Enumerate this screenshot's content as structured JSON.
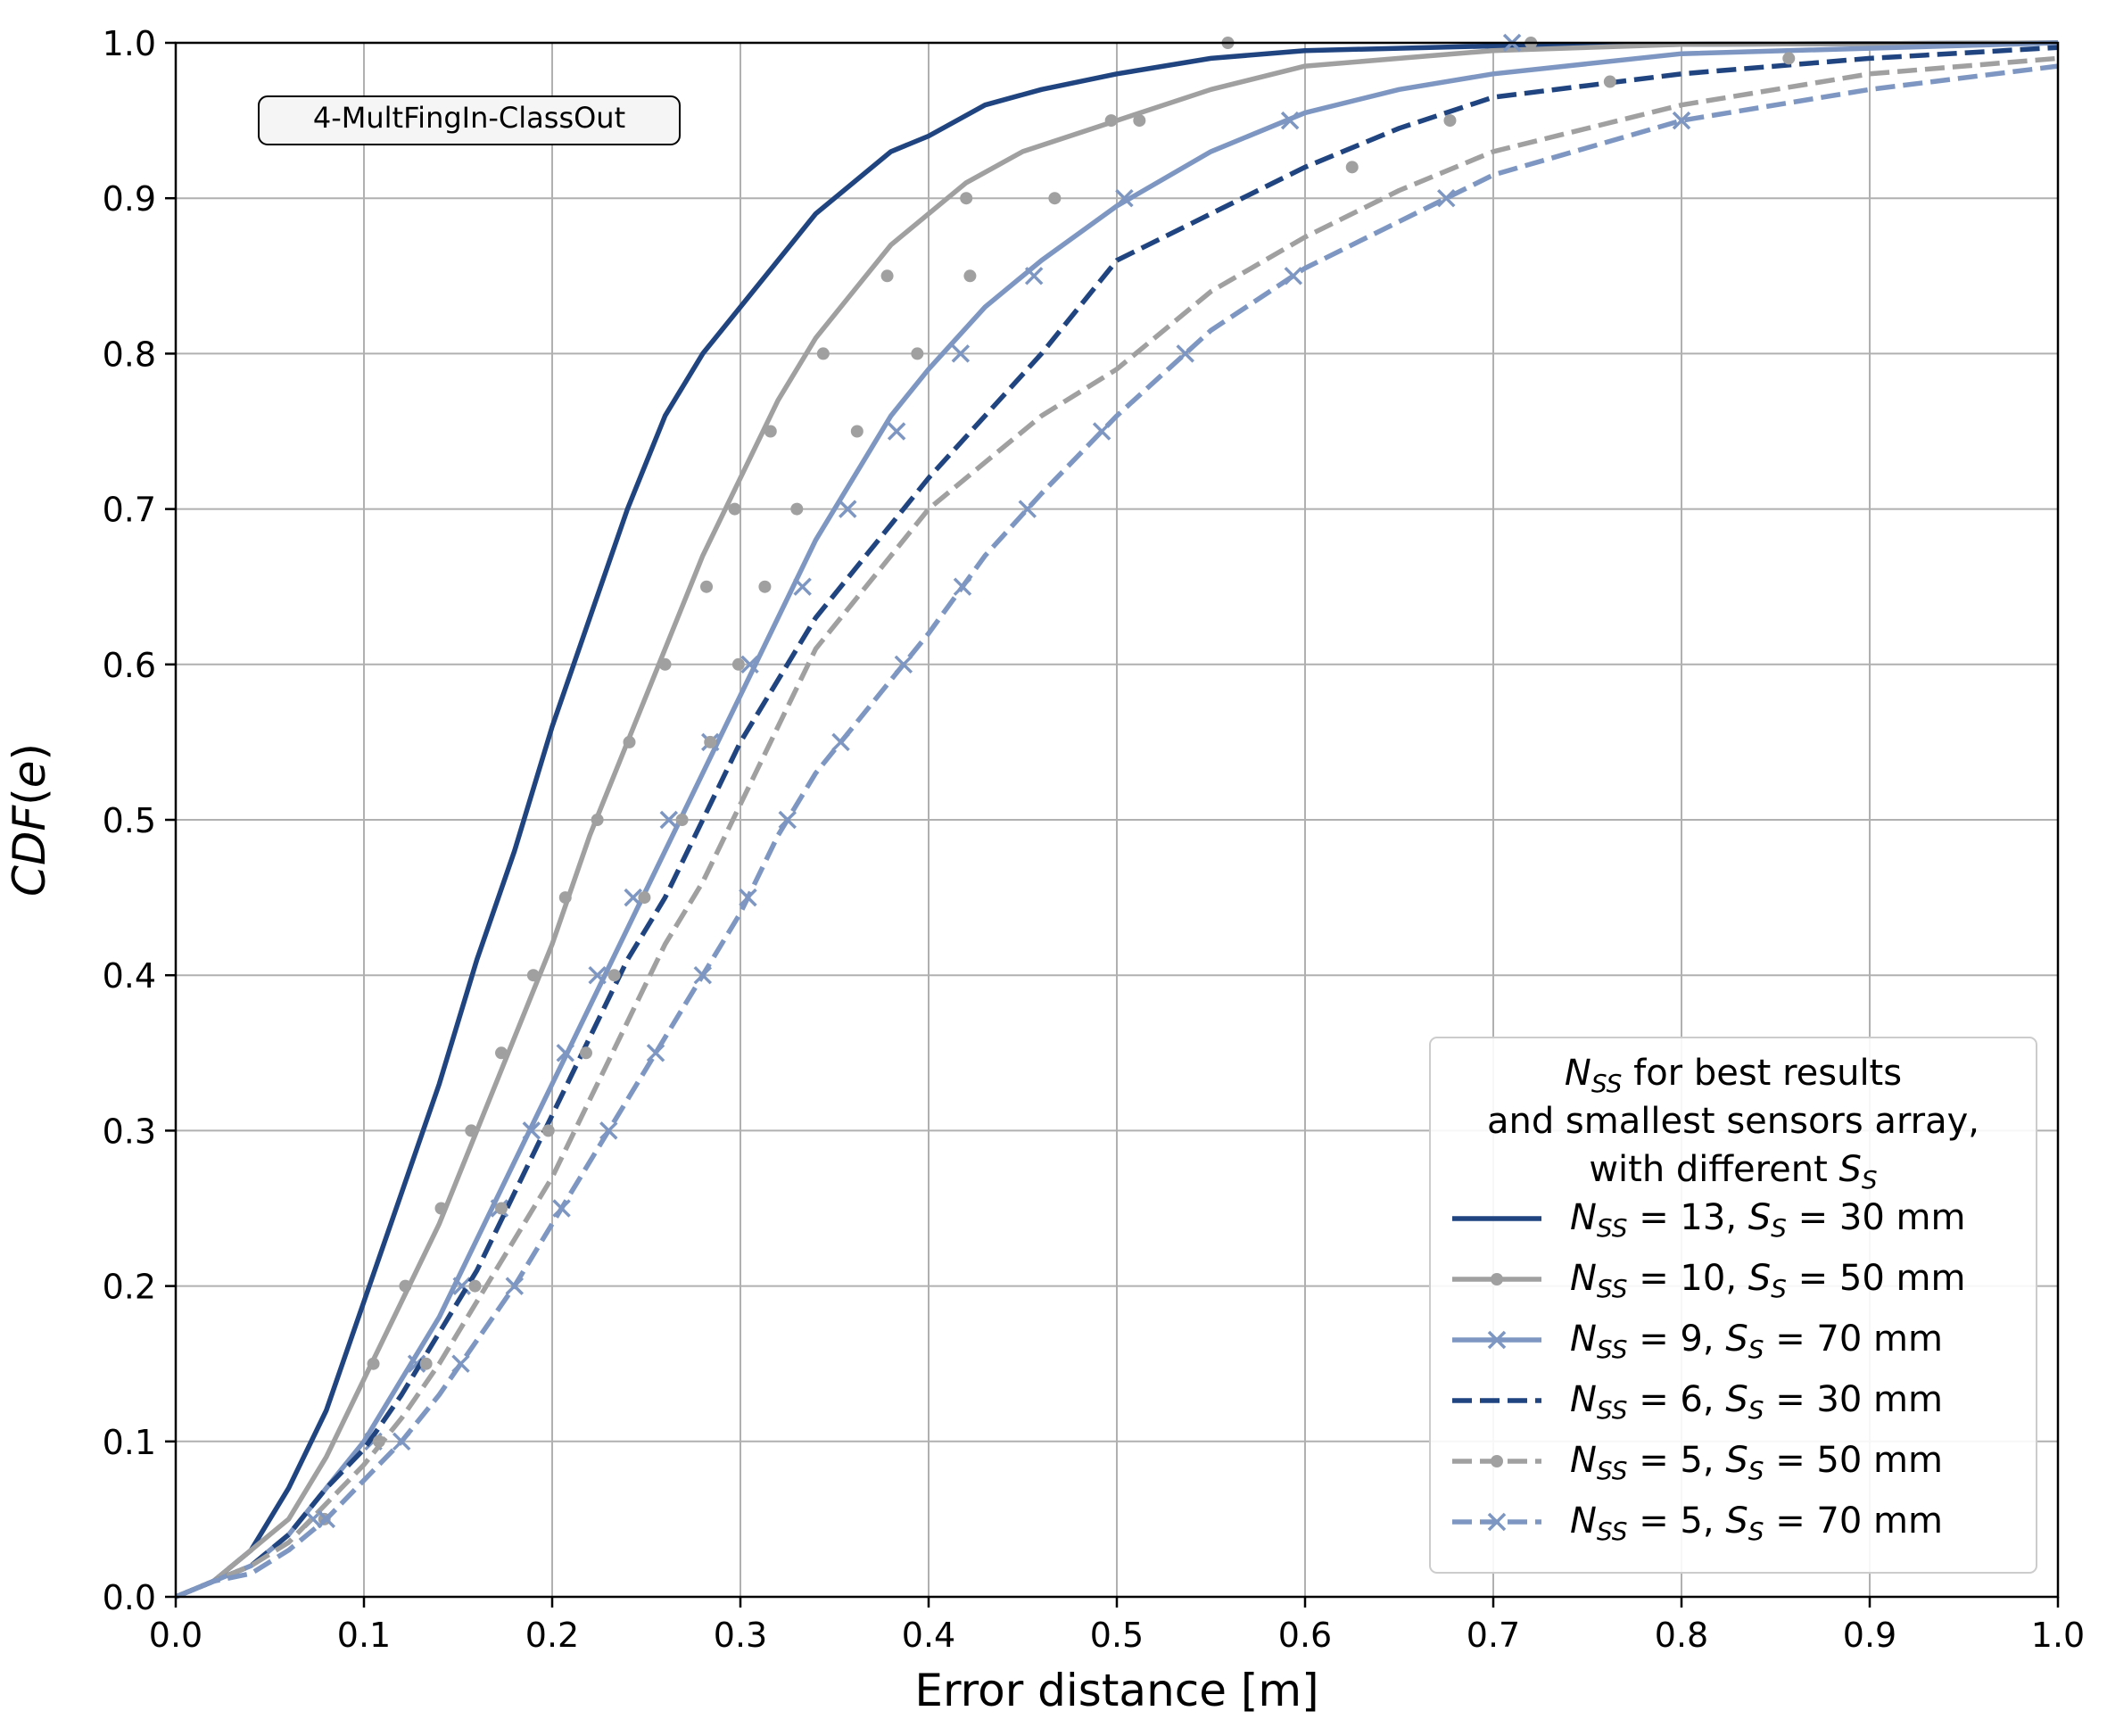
{
  "chart_data": {
    "type": "line",
    "title": "",
    "xlabel": "Error distance [m]",
    "ylabel": "CDF(e)",
    "xlim": [
      0.0,
      1.0
    ],
    "ylim": [
      0.0,
      1.0
    ],
    "xticks": [
      "0.0",
      "0.1",
      "0.2",
      "0.3",
      "0.4",
      "0.5",
      "0.6",
      "0.7",
      "0.8",
      "0.9",
      "1.0"
    ],
    "yticks": [
      "0.0",
      "0.1",
      "0.2",
      "0.3",
      "0.4",
      "0.5",
      "0.6",
      "0.7",
      "0.8",
      "0.9",
      "1.0"
    ],
    "grid": true,
    "annotation": "4-MultFingIn-ClassOut",
    "legend": {
      "placement": "lower-right",
      "title": [
        "N_SS for best results",
        "and smallest sensors array,",
        "with different S_S"
      ]
    },
    "series": [
      {
        "name": "N_SS = 13, S_S = 30 mm",
        "label_n": "13",
        "label_s": "30",
        "color": "#1f4480",
        "dash": "solid",
        "marker": "none",
        "x": [
          0.0,
          0.02,
          0.04,
          0.06,
          0.08,
          0.1,
          0.12,
          0.14,
          0.16,
          0.18,
          0.2,
          0.22,
          0.24,
          0.26,
          0.28,
          0.3,
          0.32,
          0.34,
          0.36,
          0.38,
          0.4,
          0.43,
          0.46,
          0.5,
          0.55,
          0.6,
          0.7,
          0.8,
          1.0
        ],
        "y": [
          0.0,
          0.01,
          0.03,
          0.07,
          0.12,
          0.19,
          0.26,
          0.33,
          0.41,
          0.48,
          0.56,
          0.63,
          0.7,
          0.76,
          0.8,
          0.83,
          0.86,
          0.89,
          0.91,
          0.93,
          0.94,
          0.96,
          0.97,
          0.98,
          0.99,
          0.995,
          0.998,
          0.999,
          1.0
        ]
      },
      {
        "name": "N_SS = 10, S_S = 50 mm",
        "label_n": "10",
        "label_s": "50",
        "color": "#a0a0a0",
        "dash": "solid",
        "marker": "dot",
        "x": [
          0.0,
          0.02,
          0.04,
          0.06,
          0.08,
          0.1,
          0.12,
          0.14,
          0.16,
          0.18,
          0.2,
          0.22,
          0.24,
          0.26,
          0.28,
          0.3,
          0.32,
          0.34,
          0.36,
          0.38,
          0.4,
          0.42,
          0.45,
          0.5,
          0.55,
          0.6,
          0.7,
          0.8,
          1.0
        ],
        "y": [
          0.0,
          0.01,
          0.03,
          0.05,
          0.09,
          0.14,
          0.19,
          0.24,
          0.3,
          0.36,
          0.42,
          0.49,
          0.55,
          0.61,
          0.67,
          0.72,
          0.77,
          0.81,
          0.84,
          0.87,
          0.89,
          0.91,
          0.93,
          0.95,
          0.97,
          0.985,
          0.995,
          0.999,
          1.0
        ],
        "marker_x": [
          0.105,
          0.122,
          0.141,
          0.157,
          0.173,
          0.19,
          0.207,
          0.224,
          0.241,
          0.26,
          0.282,
          0.297,
          0.316,
          0.344,
          0.378,
          0.42,
          0.497,
          0.72
        ],
        "marker_y": [
          0.15,
          0.2,
          0.25,
          0.3,
          0.35,
          0.4,
          0.45,
          0.5,
          0.55,
          0.6,
          0.65,
          0.7,
          0.75,
          0.8,
          0.85,
          0.9,
          0.95,
          1.0
        ]
      },
      {
        "name": "N_SS = 9, S_S = 70 mm",
        "label_n": "9",
        "label_s": "70",
        "color": "#7d97c2",
        "dash": "solid",
        "marker": "x",
        "x": [
          0.0,
          0.02,
          0.04,
          0.06,
          0.08,
          0.1,
          0.12,
          0.14,
          0.16,
          0.18,
          0.2,
          0.22,
          0.24,
          0.26,
          0.28,
          0.3,
          0.32,
          0.34,
          0.36,
          0.38,
          0.4,
          0.43,
          0.46,
          0.5,
          0.55,
          0.6,
          0.65,
          0.7,
          0.8,
          1.0
        ],
        "y": [
          0.0,
          0.01,
          0.02,
          0.04,
          0.07,
          0.1,
          0.14,
          0.18,
          0.23,
          0.28,
          0.33,
          0.38,
          0.43,
          0.48,
          0.53,
          0.58,
          0.63,
          0.68,
          0.72,
          0.76,
          0.79,
          0.83,
          0.86,
          0.895,
          0.93,
          0.955,
          0.97,
          0.98,
          0.993,
          1.0
        ],
        "marker_x": [
          0.073,
          0.105,
          0.128,
          0.152,
          0.172,
          0.189,
          0.207,
          0.224,
          0.243,
          0.262,
          0.284,
          0.305,
          0.333,
          0.357,
          0.383,
          0.417,
          0.456,
          0.504,
          0.592,
          0.71
        ],
        "marker_y": [
          0.05,
          0.1,
          0.15,
          0.2,
          0.25,
          0.3,
          0.35,
          0.4,
          0.45,
          0.5,
          0.55,
          0.6,
          0.65,
          0.7,
          0.75,
          0.8,
          0.85,
          0.9,
          0.95,
          1.0
        ]
      },
      {
        "name": "N_SS = 6, S_S = 30 mm",
        "label_n": "6",
        "label_s": "30",
        "color": "#1f4480",
        "dash": "dashed",
        "marker": "none",
        "x": [
          0.0,
          0.02,
          0.04,
          0.06,
          0.08,
          0.1,
          0.12,
          0.14,
          0.16,
          0.18,
          0.2,
          0.22,
          0.24,
          0.26,
          0.28,
          0.3,
          0.32,
          0.34,
          0.36,
          0.38,
          0.4,
          0.43,
          0.46,
          0.5,
          0.55,
          0.6,
          0.65,
          0.7,
          0.8,
          0.9,
          1.0
        ],
        "y": [
          0.0,
          0.01,
          0.02,
          0.04,
          0.07,
          0.095,
          0.13,
          0.17,
          0.21,
          0.26,
          0.31,
          0.36,
          0.41,
          0.45,
          0.5,
          0.55,
          0.59,
          0.63,
          0.66,
          0.69,
          0.72,
          0.76,
          0.8,
          0.86,
          0.89,
          0.92,
          0.945,
          0.965,
          0.98,
          0.99,
          0.997
        ]
      },
      {
        "name": "N_SS = 5, S_S = 50 mm",
        "label_n": "5",
        "label_s": "50",
        "color": "#a0a0a0",
        "dash": "dashed",
        "marker": "dot",
        "x": [
          0.0,
          0.02,
          0.04,
          0.06,
          0.08,
          0.1,
          0.12,
          0.14,
          0.16,
          0.18,
          0.2,
          0.22,
          0.24,
          0.26,
          0.28,
          0.3,
          0.32,
          0.34,
          0.36,
          0.38,
          0.4,
          0.43,
          0.46,
          0.5,
          0.55,
          0.6,
          0.65,
          0.7,
          0.8,
          0.9,
          1.0
        ],
        "y": [
          0.0,
          0.01,
          0.02,
          0.035,
          0.06,
          0.085,
          0.115,
          0.15,
          0.19,
          0.23,
          0.27,
          0.32,
          0.37,
          0.42,
          0.46,
          0.51,
          0.56,
          0.61,
          0.64,
          0.67,
          0.7,
          0.73,
          0.76,
          0.79,
          0.84,
          0.875,
          0.905,
          0.93,
          0.96,
          0.98,
          0.99
        ],
        "marker_x": [
          0.079,
          0.108,
          0.133,
          0.159,
          0.173,
          0.198,
          0.218,
          0.233,
          0.249,
          0.269,
          0.284,
          0.299,
          0.313,
          0.33,
          0.362,
          0.394,
          0.422,
          0.467,
          0.512,
          0.559,
          0.625,
          0.677,
          0.762,
          0.857
        ],
        "marker_y": [
          0.05,
          0.1,
          0.15,
          0.2,
          0.25,
          0.3,
          0.35,
          0.4,
          0.45,
          0.5,
          0.55,
          0.6,
          0.65,
          0.7,
          0.75,
          0.8,
          0.85,
          0.9,
          0.95,
          1.0,
          0.92,
          0.95,
          0.975,
          0.99
        ]
      },
      {
        "name": "N_SS = 5, S_S = 70 mm",
        "label_n": "5",
        "label_s": "70",
        "color": "#7d97c2",
        "dash": "dashed",
        "marker": "x",
        "x": [
          0.0,
          0.02,
          0.04,
          0.06,
          0.08,
          0.1,
          0.12,
          0.14,
          0.16,
          0.18,
          0.2,
          0.22,
          0.24,
          0.26,
          0.28,
          0.3,
          0.32,
          0.34,
          0.36,
          0.38,
          0.4,
          0.43,
          0.46,
          0.5,
          0.55,
          0.6,
          0.65,
          0.7,
          0.8,
          0.9,
          1.0
        ],
        "y": [
          0.0,
          0.01,
          0.015,
          0.03,
          0.05,
          0.075,
          0.1,
          0.13,
          0.165,
          0.2,
          0.24,
          0.28,
          0.32,
          0.36,
          0.4,
          0.44,
          0.49,
          0.53,
          0.56,
          0.59,
          0.62,
          0.67,
          0.71,
          0.76,
          0.815,
          0.855,
          0.885,
          0.915,
          0.95,
          0.97,
          0.985
        ]
      }
    ]
  }
}
